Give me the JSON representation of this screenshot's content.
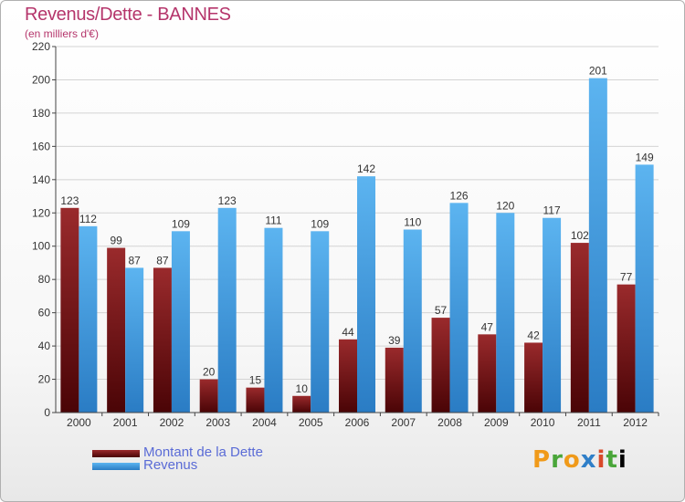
{
  "chart_data": {
    "type": "bar",
    "title": "Revenus/Dette - BANNES",
    "subtitle": "(en milliers d'€)",
    "categories": [
      "2000",
      "2001",
      "2002",
      "2003",
      "2004",
      "2005",
      "2006",
      "2007",
      "2008",
      "2009",
      "2010",
      "2011",
      "2012"
    ],
    "series": [
      {
        "name": "Montant de la Dette",
        "color": "#7a1416",
        "values": [
          123,
          99,
          87,
          20,
          15,
          10,
          44,
          39,
          57,
          47,
          42,
          102,
          77
        ]
      },
      {
        "name": "Revenus",
        "color": "#3d9ae2",
        "values": [
          112,
          87,
          109,
          123,
          111,
          109,
          142,
          110,
          126,
          120,
          117,
          201,
          149
        ]
      }
    ],
    "ylim": [
      0,
      220
    ],
    "yticks": [
      0,
      20,
      40,
      60,
      80,
      100,
      120,
      140,
      160,
      180,
      200,
      220
    ],
    "grid": true,
    "legend": "bottom-left"
  },
  "logo": {
    "letters": [
      "P",
      "r",
      "o",
      "x",
      "i",
      "t",
      "i"
    ]
  }
}
